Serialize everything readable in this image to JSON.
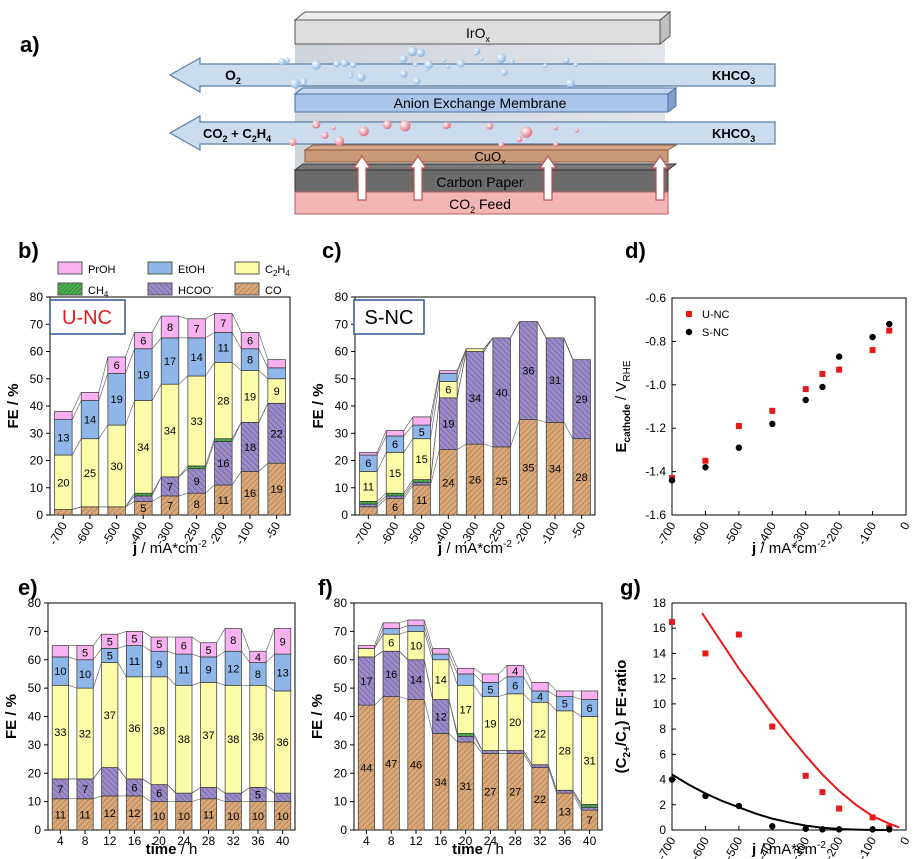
{
  "panel_labels": {
    "a": "a)",
    "b": "b)",
    "c": "c)",
    "d": "d)",
    "e": "e)",
    "f": "f)",
    "g": "g)"
  },
  "schematic": {
    "iro": "IrO",
    "iro_sub": "x",
    "o2": "O",
    "o2_sub": "2",
    "khco3_top": "KHCO",
    "khco3_top_sub": "3",
    "membrane": "Anion Exchange Membrane",
    "co2_c2h4": "CO",
    "co2_sub": "2",
    "co2_plus": " + C",
    "c2h4_sub1": "2",
    "c2h4_h": "H",
    "c2h4_sub2": "4",
    "khco3_bot": "KHCO",
    "khco3_bot_sub": "3",
    "cuox": "CuO",
    "cuox_sub": "x",
    "carbon": "Carbon Paper",
    "feed": "CO",
    "feed_sub": "2",
    "feed_rest": " Feed"
  },
  "legend": {
    "items": [
      {
        "name": "PrOH",
        "color": "#f9b0f0"
      },
      {
        "name": "EtOH",
        "color": "#8fb6e8"
      },
      {
        "name": "C2H4",
        "color": "#fbfba8"
      },
      {
        "name": "CH4",
        "color": "#4caf50"
      },
      {
        "name": "HCOO-",
        "color": "#9b8cc8"
      },
      {
        "name": "CO",
        "color": "#d9a878"
      }
    ],
    "c2h4_text": "C",
    "c2h4_s1": "2",
    "c2h4_h": "H",
    "c2h4_s2": "4",
    "ch4_text": "CH",
    "ch4_s": "4",
    "hcoo_text": "HCOO",
    "hcoo_sup": "-"
  },
  "tags": {
    "b": "U-NC",
    "c": "S-NC"
  },
  "axis_text": {
    "fe": "FE / %",
    "j_b": "j",
    "j_b_rest": " / mA*cm",
    "j_sup": "-2",
    "time": "time",
    "time_rest": " / h",
    "d_ylabel_main": "E",
    "d_ylabel_sub": "cathode",
    "d_ylabel_rest": " / V",
    "d_ylabel_sub2": "RHE",
    "g_ylabel": "(C",
    "g_s1": "2+",
    "g_mid": "/C",
    "g_s2": "1",
    "g_rest": ") FE-ratio"
  },
  "chart_data": [
    {
      "panel": "b",
      "type": "bar",
      "stacked": true,
      "categories": [
        "-700",
        "-600",
        "-500",
        "-400",
        "-300",
        "-250",
        "-200",
        "-100",
        "-50"
      ],
      "ylim": [
        0,
        80
      ],
      "yticks": [
        0,
        10,
        20,
        30,
        40,
        50,
        60,
        70,
        80
      ],
      "xlabel": "j / mA*cm-2",
      "ylabel": "FE / %",
      "series": [
        {
          "name": "CO",
          "values": [
            2,
            3,
            3,
            5,
            7,
            8,
            11,
            16,
            19
          ],
          "labels": [
            "",
            "",
            "",
            "5",
            "7",
            "8",
            "11",
            "16",
            "19"
          ]
        },
        {
          "name": "HCOO-",
          "values": [
            0,
            0,
            0,
            2,
            7,
            9,
            16,
            18,
            22
          ],
          "labels": [
            "",
            "",
            "",
            "",
            "7",
            "9",
            "16",
            "18",
            "22"
          ]
        },
        {
          "name": "CH4",
          "values": [
            0,
            0,
            0,
            1,
            0,
            1,
            1,
            0,
            0
          ],
          "labels": [
            "",
            "",
            "",
            "",
            "",
            "",
            "",
            "",
            ""
          ]
        },
        {
          "name": "C2H4",
          "values": [
            20,
            25,
            30,
            34,
            34,
            33,
            28,
            19,
            9
          ],
          "labels": [
            "20",
            "25",
            "30",
            "34",
            "34",
            "33",
            "28",
            "19",
            "9"
          ]
        },
        {
          "name": "EtOH",
          "values": [
            13,
            14,
            19,
            19,
            17,
            14,
            11,
            8,
            4
          ],
          "labels": [
            "13",
            "14",
            "19",
            "19",
            "17",
            "14",
            "11",
            "8",
            ""
          ]
        },
        {
          "name": "PrOH",
          "values": [
            3,
            3,
            6,
            6,
            8,
            7,
            7,
            6,
            3
          ],
          "labels": [
            "",
            "",
            "6",
            "6",
            "8",
            "7",
            "7",
            "6",
            ""
          ]
        }
      ]
    },
    {
      "panel": "c",
      "type": "bar",
      "stacked": true,
      "categories": [
        "-700",
        "-600",
        "-500",
        "-400",
        "-300",
        "-250",
        "-200",
        "-100",
        "-50"
      ],
      "ylim": [
        0,
        80
      ],
      "yticks": [
        0,
        10,
        20,
        30,
        40,
        50,
        60,
        70,
        80
      ],
      "xlabel": "j / mA*cm-2",
      "ylabel": "FE / %",
      "series": [
        {
          "name": "CO",
          "values": [
            3,
            6,
            11,
            24,
            26,
            25,
            35,
            34,
            28
          ],
          "labels": [
            "",
            "6",
            "11",
            "24",
            "26",
            "25",
            "35",
            "34",
            "28"
          ]
        },
        {
          "name": "HCOO-",
          "values": [
            1,
            1,
            1,
            19,
            34,
            40,
            36,
            31,
            29
          ],
          "labels": [
            "",
            "",
            "",
            "19",
            "34",
            "40",
            "36",
            "31",
            "29"
          ]
        },
        {
          "name": "CH4",
          "values": [
            1,
            1,
            1,
            0,
            0,
            0,
            0,
            0,
            0
          ],
          "labels": [
            "",
            "",
            "",
            "",
            "",
            "",
            "",
            "",
            ""
          ]
        },
        {
          "name": "C2H4",
          "values": [
            11,
            15,
            15,
            6,
            1,
            0,
            0,
            0,
            0
          ],
          "labels": [
            "11",
            "15",
            "15",
            "6",
            "",
            "",
            "",
            "",
            ""
          ]
        },
        {
          "name": "EtOH",
          "values": [
            6,
            6,
            5,
            3,
            0,
            0,
            0,
            0,
            0
          ],
          "labels": [
            "6",
            "6",
            "5",
            "",
            "",
            "",
            "",
            "",
            ""
          ]
        },
        {
          "name": "PrOH",
          "values": [
            1,
            2,
            3,
            1,
            0,
            0,
            0,
            0,
            0
          ],
          "labels": [
            "",
            "",
            "",
            "",
            "",
            "",
            "",
            "",
            ""
          ]
        }
      ]
    },
    {
      "panel": "d",
      "type": "scatter",
      "xlim": [
        -700,
        0
      ],
      "ylim": [
        -1.6,
        -0.6
      ],
      "xticks": [
        -700,
        -600,
        -500,
        -400,
        -300,
        -200,
        -100,
        0
      ],
      "yticks": [
        -1.6,
        -1.4,
        -1.2,
        -1.0,
        -0.8,
        -0.6
      ],
      "xlabel": "j / mA*cm-2",
      "ylabel": "Ecathode / VRHE",
      "series": [
        {
          "name": "U-NC",
          "color": "#e8191b",
          "marker": "square",
          "x": [
            -700,
            -600,
            -500,
            -400,
            -300,
            -250,
            -200,
            -100,
            -50
          ],
          "y": [
            -1.43,
            -1.35,
            -1.19,
            -1.12,
            -1.02,
            -0.95,
            -0.93,
            -0.84,
            -0.75
          ]
        },
        {
          "name": "S-NC",
          "color": "#000000",
          "marker": "circle",
          "x": [
            -700,
            -600,
            -500,
            -400,
            -300,
            -250,
            -200,
            -100,
            -50
          ],
          "y": [
            -1.44,
            -1.38,
            -1.29,
            -1.18,
            -1.07,
            -1.01,
            -0.87,
            -0.78,
            -0.72
          ]
        }
      ]
    },
    {
      "panel": "e",
      "type": "bar",
      "stacked": true,
      "categories": [
        "4",
        "8",
        "12",
        "16",
        "20",
        "24",
        "28",
        "32",
        "36",
        "40"
      ],
      "ylim": [
        0,
        80
      ],
      "yticks": [
        0,
        10,
        20,
        30,
        40,
        50,
        60,
        70,
        80
      ],
      "xlabel": "time / h",
      "ylabel": "FE / %",
      "series": [
        {
          "name": "CO",
          "values": [
            11,
            11,
            12,
            12,
            10,
            10,
            11,
            10,
            10,
            10
          ],
          "labels": [
            "11",
            "11",
            "12",
            "12",
            "10",
            "10",
            "11",
            "10",
            "10",
            "10"
          ]
        },
        {
          "name": "HCOO-",
          "values": [
            7,
            7,
            10,
            6,
            6,
            3,
            4,
            3,
            5,
            3
          ],
          "labels": [
            "7",
            "7",
            "",
            "6",
            "6",
            "",
            "",
            "",
            "5",
            ""
          ]
        },
        {
          "name": "CH4",
          "values": [
            0,
            0,
            0,
            0,
            0,
            0,
            0,
            0,
            0,
            0
          ],
          "labels": [
            "",
            "",
            "",
            "",
            "",
            "",
            "",
            "",
            "",
            ""
          ]
        },
        {
          "name": "C2H4",
          "values": [
            33,
            32,
            37,
            36,
            38,
            38,
            37,
            38,
            36,
            36
          ],
          "labels": [
            "33",
            "32",
            "37",
            "36",
            "38",
            "38",
            "37",
            "38",
            "36",
            "36"
          ]
        },
        {
          "name": "EtOH",
          "values": [
            10,
            10,
            5,
            11,
            9,
            11,
            9,
            12,
            8,
            13
          ],
          "labels": [
            "10",
            "10",
            "5",
            "11",
            "9",
            "11",
            "9",
            "12",
            "8",
            "13"
          ]
        },
        {
          "name": "PrOH",
          "values": [
            4,
            5,
            5,
            5,
            5,
            6,
            5,
            8,
            4,
            9
          ],
          "labels": [
            "",
            "5",
            "5",
            "5",
            "5",
            "6",
            "5",
            "8",
            "4",
            "9"
          ]
        }
      ]
    },
    {
      "panel": "f",
      "type": "bar",
      "stacked": true,
      "categories": [
        "4",
        "8",
        "12",
        "16",
        "20",
        "24",
        "28",
        "32",
        "36",
        "40"
      ],
      "ylim": [
        0,
        80
      ],
      "yticks": [
        0,
        10,
        20,
        30,
        40,
        50,
        60,
        70,
        80
      ],
      "xlabel": "time / h",
      "ylabel": "FE / %",
      "series": [
        {
          "name": "CO",
          "values": [
            44,
            47,
            46,
            34,
            31,
            27,
            27,
            22,
            13,
            7
          ],
          "labels": [
            "44",
            "47",
            "46",
            "34",
            "31",
            "27",
            "27",
            "22",
            "13",
            "7"
          ]
        },
        {
          "name": "HCOO-",
          "values": [
            17,
            16,
            14,
            12,
            2,
            1,
            1,
            1,
            1,
            1
          ],
          "labels": [
            "17",
            "16",
            "14",
            "12",
            "",
            "",
            "",
            "",
            "",
            ""
          ]
        },
        {
          "name": "CH4",
          "values": [
            0,
            0,
            0,
            0,
            1,
            0,
            0,
            0,
            0,
            1
          ],
          "labels": [
            "",
            "",
            "",
            "",
            "",
            "",
            "",
            "",
            "",
            ""
          ]
        },
        {
          "name": "C2H4",
          "values": [
            3,
            6,
            10,
            14,
            17,
            19,
            20,
            22,
            28,
            31
          ],
          "labels": [
            "",
            "6",
            "10",
            "14",
            "17",
            "19",
            "20",
            "22",
            "28",
            "31"
          ]
        },
        {
          "name": "EtOH",
          "values": [
            0,
            2,
            2,
            2,
            4,
            5,
            6,
            4,
            5,
            6
          ],
          "labels": [
            "",
            "",
            "",
            "",
            "",
            "5",
            "6",
            "4",
            "5",
            "6"
          ]
        },
        {
          "name": "PrOH",
          "values": [
            1,
            2,
            2,
            2,
            2,
            3,
            4,
            3,
            2,
            3
          ],
          "labels": [
            "",
            "",
            "",
            "",
            "",
            "",
            "4",
            "",
            "",
            ""
          ]
        }
      ]
    },
    {
      "panel": "g",
      "type": "scatter",
      "xlim": [
        -700,
        0
      ],
      "ylim": [
        0,
        18
      ],
      "xticks": [
        -700,
        -600,
        -500,
        -400,
        -300,
        -200,
        -100,
        0
      ],
      "yticks": [
        0,
        2,
        4,
        6,
        8,
        10,
        12,
        14,
        16,
        18
      ],
      "xlabel": "j / mA*cm-2",
      "ylabel": "(C2+/C1) FE-ratio",
      "series": [
        {
          "name": "U-NC",
          "color": "#e8191b",
          "marker": "square",
          "x": [
            -700,
            -600,
            -500,
            -400,
            -300,
            -250,
            -200,
            -100,
            -50
          ],
          "y": [
            16.5,
            14.0,
            15.5,
            8.2,
            4.3,
            3.0,
            1.7,
            1.0,
            0.2
          ]
        },
        {
          "name": "S-NC",
          "color": "#000000",
          "marker": "circle",
          "x": [
            -700,
            -600,
            -500,
            -400,
            -300,
            -250,
            -200,
            -100,
            -50
          ],
          "y": [
            4.0,
            2.7,
            1.9,
            0.3,
            0.1,
            0.05,
            0.05,
            0.05,
            0.05
          ]
        }
      ],
      "fits": [
        {
          "color": "#e8191b",
          "x": [
            -610,
            -550,
            -500,
            -450,
            -400,
            -350,
            -300,
            -250,
            -200,
            -150,
            -100,
            -50,
            -20
          ],
          "y": [
            17.2,
            14.8,
            12.8,
            11.0,
            9.2,
            7.5,
            5.9,
            4.4,
            3.1,
            2.0,
            1.1,
            0.5,
            0.2
          ]
        },
        {
          "color": "#000000",
          "x": [
            -700,
            -650,
            -600,
            -550,
            -500,
            -450,
            -400,
            -350,
            -300,
            -250,
            -200,
            -150,
            -100,
            -50
          ],
          "y": [
            4.4,
            3.6,
            2.9,
            2.3,
            1.8,
            1.3,
            0.9,
            0.6,
            0.35,
            0.18,
            0.08,
            0.03,
            0.0,
            0.0
          ]
        }
      ]
    }
  ]
}
